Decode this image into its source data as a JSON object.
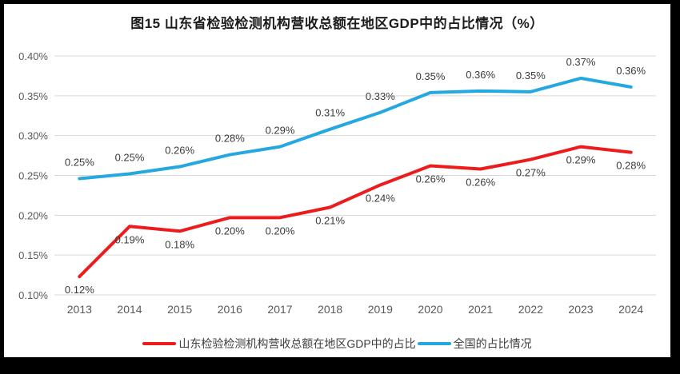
{
  "chart_data": {
    "type": "line",
    "title": "图15  山东省检验检测机构营收总额在地区GDP中的占比情况（%）",
    "xlabel": "",
    "ylabel": "",
    "ylim": [
      0.1,
      0.4
    ],
    "grid": true,
    "legend_position": "bottom",
    "categories": [
      "2013",
      "2014",
      "2015",
      "2016",
      "2017",
      "2018",
      "2019",
      "2020",
      "2021",
      "2022",
      "2023",
      "2024"
    ],
    "yticks": [
      {
        "value": 0.1,
        "label": "0.10%"
      },
      {
        "value": 0.15,
        "label": "0.15%"
      },
      {
        "value": 0.2,
        "label": "0.20%"
      },
      {
        "value": 0.25,
        "label": "0.25%"
      },
      {
        "value": 0.3,
        "label": "0.30%"
      },
      {
        "value": 0.35,
        "label": "0.35%"
      },
      {
        "value": 0.4,
        "label": "0.40%"
      }
    ],
    "series": [
      {
        "name": "山东检验检测机构营收总额在地区GDP中的占比",
        "key": "shandong",
        "color": "#ed1c1c",
        "label_position": "below",
        "values": [
          0.123,
          0.186,
          0.18,
          0.197,
          0.197,
          0.21,
          0.238,
          0.262,
          0.258,
          0.27,
          0.286,
          0.279
        ],
        "labels": [
          "0.12%",
          "0.19%",
          "0.18%",
          "0.20%",
          "0.20%",
          "0.21%",
          "0.24%",
          "0.26%",
          "0.26%",
          "0.27%",
          "0.29%",
          "0.28%"
        ]
      },
      {
        "name": "全国的占比情况",
        "key": "national",
        "color": "#25a8e0",
        "label_position": "above",
        "values": [
          0.246,
          0.252,
          0.261,
          0.276,
          0.286,
          0.308,
          0.329,
          0.354,
          0.356,
          0.355,
          0.372,
          0.361
        ],
        "labels": [
          "0.25%",
          "0.25%",
          "0.26%",
          "0.28%",
          "0.29%",
          "0.31%",
          "0.33%",
          "0.35%",
          "0.36%",
          "0.35%",
          "0.37%",
          "0.36%"
        ]
      }
    ],
    "style": {
      "grid_color": "#d9d9d9",
      "axis_text_color": "#595959",
      "data_label_color": "#3b3b3b",
      "background": "#ffffff",
      "border_color": "#000000"
    }
  }
}
